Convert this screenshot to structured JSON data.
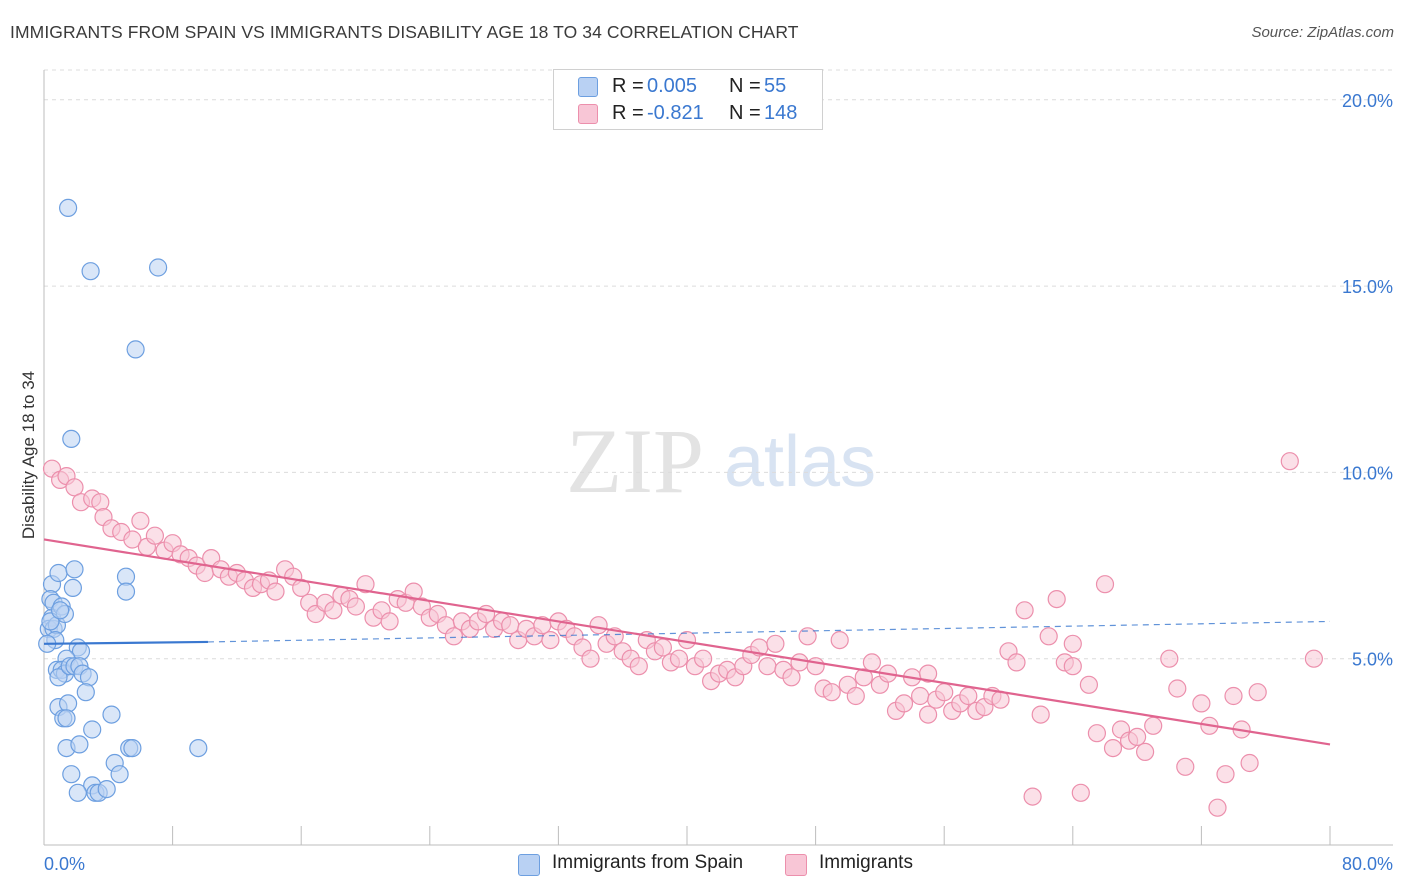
{
  "title": "IMMIGRANTS FROM SPAIN VS IMMIGRANTS DISABILITY AGE 18 TO 34 CORRELATION CHART",
  "source": "Source: ZipAtlas.com",
  "watermark": {
    "zip": "ZIP",
    "atlas": "atlas"
  },
  "legend_top": [
    {
      "r_label": "R =",
      "r_value": "0.005",
      "n_label": "N =",
      "n_value": "55",
      "fill": "#b9d1f3",
      "stroke": "#6d9fe0"
    },
    {
      "r_label": "R =",
      "r_value": "-0.821",
      "n_label": "N =",
      "n_value": "148",
      "fill": "#f8c6d6",
      "stroke": "#ec8fac"
    }
  ],
  "legend_bottom": [
    {
      "label": "Immigrants from Spain",
      "fill": "#b9d1f3",
      "stroke": "#6d9fe0"
    },
    {
      "label": "Immigrants",
      "fill": "#f8c6d6",
      "stroke": "#ec8fac"
    }
  ],
  "chart_data": {
    "type": "scatter",
    "title": "IMMIGRANTS FROM SPAIN VS IMMIGRANTS DISABILITY AGE 18 TO 34 CORRELATION CHART",
    "xlabel": "",
    "ylabel": "Disability Age 18 to 34",
    "xlim": [
      0,
      80
    ],
    "ylim": [
      0,
      20.8
    ],
    "x_tick_labels": [
      "0.0%",
      "80.0%"
    ],
    "y_ticks": [
      5,
      10,
      15,
      20
    ],
    "y_tick_labels": [
      "5.0%",
      "10.0%",
      "15.0%",
      "20.0%"
    ],
    "grid": true,
    "series": [
      {
        "name": "Immigrants from Spain",
        "color": "#6d9fe0",
        "fill": "#b9d1f3",
        "trend_line": {
          "x": [
            0,
            10.2
          ],
          "y": [
            5.4,
            5.45
          ],
          "style": "solid"
        },
        "trend_extension": {
          "x": [
            10.2,
            80
          ],
          "y": [
            5.45,
            6.0
          ],
          "style": "dashed"
        },
        "points": [
          [
            1.5,
            17.1
          ],
          [
            2.9,
            15.4
          ],
          [
            7.1,
            15.5
          ],
          [
            5.7,
            13.3
          ],
          [
            1.7,
            10.9
          ],
          [
            0.5,
            7.0
          ],
          [
            0.4,
            6.6
          ],
          [
            0.6,
            6.5
          ],
          [
            0.5,
            6.1
          ],
          [
            0.3,
            5.8
          ],
          [
            0.6,
            5.8
          ],
          [
            0.8,
            5.9
          ],
          [
            0.7,
            5.5
          ],
          [
            0.9,
            7.3
          ],
          [
            1.1,
            6.4
          ],
          [
            1.3,
            6.2
          ],
          [
            1.8,
            6.9
          ],
          [
            1.9,
            7.4
          ],
          [
            5.1,
            7.2
          ],
          [
            5.1,
            6.8
          ],
          [
            2.1,
            5.3
          ],
          [
            2.3,
            5.2
          ],
          [
            1.4,
            5.0
          ],
          [
            0.8,
            4.7
          ],
          [
            1.1,
            4.7
          ],
          [
            1.3,
            4.6
          ],
          [
            0.9,
            4.5
          ],
          [
            1.6,
            4.8
          ],
          [
            1.9,
            4.8
          ],
          [
            2.2,
            4.8
          ],
          [
            2.4,
            4.6
          ],
          [
            2.8,
            4.5
          ],
          [
            2.6,
            4.1
          ],
          [
            0.9,
            3.7
          ],
          [
            1.5,
            3.8
          ],
          [
            1.2,
            3.4
          ],
          [
            1.4,
            3.4
          ],
          [
            3.0,
            3.1
          ],
          [
            4.2,
            3.5
          ],
          [
            1.4,
            2.6
          ],
          [
            2.2,
            2.7
          ],
          [
            5.3,
            2.6
          ],
          [
            5.5,
            2.6
          ],
          [
            9.6,
            2.6
          ],
          [
            4.4,
            2.2
          ],
          [
            1.7,
            1.9
          ],
          [
            4.7,
            1.9
          ],
          [
            3.0,
            1.6
          ],
          [
            2.1,
            1.4
          ],
          [
            3.2,
            1.4
          ],
          [
            3.4,
            1.4
          ],
          [
            3.9,
            1.5
          ],
          [
            0.2,
            5.4
          ],
          [
            0.4,
            6.0
          ],
          [
            1.0,
            6.3
          ]
        ]
      },
      {
        "name": "Immigrants",
        "color": "#ec8fac",
        "fill": "#f8c6d6",
        "trend_line": {
          "x": [
            0,
            80
          ],
          "y": [
            8.2,
            2.7
          ],
          "style": "solid"
        },
        "points": [
          [
            0.5,
            10.1
          ],
          [
            1.0,
            9.8
          ],
          [
            1.4,
            9.9
          ],
          [
            1.9,
            9.6
          ],
          [
            2.3,
            9.2
          ],
          [
            3.0,
            9.3
          ],
          [
            3.5,
            9.2
          ],
          [
            3.7,
            8.8
          ],
          [
            4.2,
            8.5
          ],
          [
            4.8,
            8.4
          ],
          [
            5.5,
            8.2
          ],
          [
            6.0,
            8.7
          ],
          [
            6.4,
            8.0
          ],
          [
            6.9,
            8.3
          ],
          [
            7.5,
            7.9
          ],
          [
            8.0,
            8.1
          ],
          [
            8.5,
            7.8
          ],
          [
            9.0,
            7.7
          ],
          [
            9.5,
            7.5
          ],
          [
            10.0,
            7.3
          ],
          [
            10.4,
            7.7
          ],
          [
            11.0,
            7.4
          ],
          [
            11.5,
            7.2
          ],
          [
            12.0,
            7.3
          ],
          [
            12.5,
            7.1
          ],
          [
            13.0,
            6.9
          ],
          [
            13.5,
            7.0
          ],
          [
            14.0,
            7.1
          ],
          [
            14.4,
            6.8
          ],
          [
            15.0,
            7.4
          ],
          [
            15.5,
            7.2
          ],
          [
            16.0,
            6.9
          ],
          [
            16.5,
            6.5
          ],
          [
            16.9,
            6.2
          ],
          [
            17.5,
            6.5
          ],
          [
            18.0,
            6.3
          ],
          [
            18.5,
            6.7
          ],
          [
            19.0,
            6.6
          ],
          [
            19.4,
            6.4
          ],
          [
            20.0,
            7.0
          ],
          [
            20.5,
            6.1
          ],
          [
            21.0,
            6.3
          ],
          [
            21.5,
            6.0
          ],
          [
            22.0,
            6.6
          ],
          [
            22.5,
            6.5
          ],
          [
            23.0,
            6.8
          ],
          [
            23.5,
            6.4
          ],
          [
            24.0,
            6.1
          ],
          [
            24.5,
            6.2
          ],
          [
            25.0,
            5.9
          ],
          [
            25.5,
            5.6
          ],
          [
            26.0,
            6.0
          ],
          [
            26.5,
            5.8
          ],
          [
            27.0,
            6.0
          ],
          [
            27.5,
            6.2
          ],
          [
            28.0,
            5.8
          ],
          [
            28.5,
            6.0
          ],
          [
            29.0,
            5.9
          ],
          [
            29.5,
            5.5
          ],
          [
            30.0,
            5.8
          ],
          [
            30.5,
            5.6
          ],
          [
            31.0,
            5.9
          ],
          [
            31.5,
            5.5
          ],
          [
            32.0,
            6.0
          ],
          [
            32.5,
            5.8
          ],
          [
            33.0,
            5.6
          ],
          [
            33.5,
            5.3
          ],
          [
            34.0,
            5.0
          ],
          [
            34.5,
            5.9
          ],
          [
            35.0,
            5.4
          ],
          [
            35.5,
            5.6
          ],
          [
            36.0,
            5.2
          ],
          [
            36.5,
            5.0
          ],
          [
            37.0,
            4.8
          ],
          [
            37.5,
            5.5
          ],
          [
            38.0,
            5.2
          ],
          [
            38.5,
            5.3
          ],
          [
            39.0,
            4.9
          ],
          [
            39.5,
            5.0
          ],
          [
            40.0,
            5.5
          ],
          [
            40.5,
            4.8
          ],
          [
            41.0,
            5.0
          ],
          [
            41.5,
            4.4
          ],
          [
            42.0,
            4.6
          ],
          [
            42.5,
            4.7
          ],
          [
            43.0,
            4.5
          ],
          [
            43.5,
            4.8
          ],
          [
            44.0,
            5.1
          ],
          [
            44.5,
            5.3
          ],
          [
            45.0,
            4.8
          ],
          [
            45.5,
            5.4
          ],
          [
            46.0,
            4.7
          ],
          [
            46.5,
            4.5
          ],
          [
            47.0,
            4.9
          ],
          [
            47.5,
            5.6
          ],
          [
            48.0,
            4.8
          ],
          [
            48.5,
            4.2
          ],
          [
            49.0,
            4.1
          ],
          [
            49.5,
            5.5
          ],
          [
            50.0,
            4.3
          ],
          [
            50.5,
            4.0
          ],
          [
            51.0,
            4.5
          ],
          [
            51.5,
            4.9
          ],
          [
            52.0,
            4.3
          ],
          [
            52.5,
            4.6
          ],
          [
            53.0,
            3.6
          ],
          [
            53.5,
            3.8
          ],
          [
            54.0,
            4.5
          ],
          [
            54.5,
            4.0
          ],
          [
            55.0,
            3.5
          ],
          [
            55.5,
            3.9
          ],
          [
            56.0,
            4.1
          ],
          [
            56.5,
            3.6
          ],
          [
            57.0,
            3.8
          ],
          [
            57.5,
            4.0
          ],
          [
            58.0,
            3.6
          ],
          [
            58.5,
            3.7
          ],
          [
            59.0,
            4.0
          ],
          [
            59.5,
            3.9
          ],
          [
            60.0,
            5.2
          ],
          [
            60.5,
            4.9
          ],
          [
            61.0,
            6.3
          ],
          [
            61.5,
            1.3
          ],
          [
            62.0,
            3.5
          ],
          [
            62.5,
            5.6
          ],
          [
            63.0,
            6.6
          ],
          [
            63.5,
            4.9
          ],
          [
            64.0,
            4.8
          ],
          [
            64.5,
            1.4
          ],
          [
            65.0,
            4.3
          ],
          [
            65.5,
            3.0
          ],
          [
            66.0,
            7.0
          ],
          [
            66.5,
            2.6
          ],
          [
            67.0,
            3.1
          ],
          [
            67.5,
            2.8
          ],
          [
            68.0,
            2.9
          ],
          [
            69.0,
            3.2
          ],
          [
            70.0,
            5.0
          ],
          [
            70.5,
            4.2
          ],
          [
            71.0,
            2.1
          ],
          [
            72.5,
            3.2
          ],
          [
            73.0,
            1.0
          ],
          [
            73.5,
            1.9
          ],
          [
            75.0,
            2.2
          ],
          [
            77.5,
            10.3
          ],
          [
            79.0,
            5.0
          ],
          [
            72.0,
            3.8
          ],
          [
            74.0,
            4.0
          ],
          [
            75.5,
            4.1
          ],
          [
            74.5,
            3.1
          ],
          [
            64.0,
            5.4
          ],
          [
            68.5,
            2.5
          ],
          [
            55.0,
            4.6
          ]
        ]
      }
    ]
  }
}
